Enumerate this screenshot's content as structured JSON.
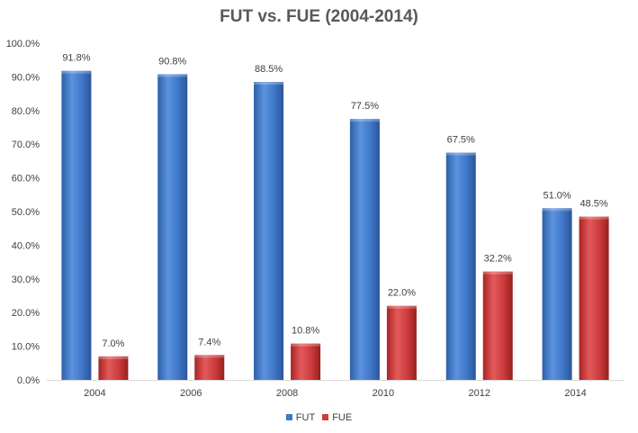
{
  "chart_data": {
    "type": "bar",
    "title": "FUT vs. FUE (2004-2014)",
    "categories": [
      "2004",
      "2006",
      "2008",
      "2010",
      "2012",
      "2014"
    ],
    "series": [
      {
        "name": "FUT",
        "values": [
          91.8,
          90.8,
          88.5,
          77.5,
          67.5,
          51.0
        ],
        "color": "#3f76c8",
        "labels": [
          "91.8%",
          "90.8%",
          "88.5%",
          "77.5%",
          "67.5%",
          "51.0%"
        ]
      },
      {
        "name": "FUE",
        "values": [
          7.0,
          7.4,
          10.8,
          22.0,
          32.2,
          48.5
        ],
        "color": "#d03b3b",
        "labels": [
          "7.0%",
          "7.4%",
          "10.8%",
          "22.0%",
          "32.2%",
          "48.5%"
        ]
      }
    ],
    "ylim": [
      0,
      100
    ],
    "yticks": [
      "0.0%",
      "10.0%",
      "20.0%",
      "30.0%",
      "40.0%",
      "50.0%",
      "60.0%",
      "70.0%",
      "80.0%",
      "90.0%",
      "100.0%"
    ],
    "grid": false,
    "legend_position": "bottom"
  }
}
